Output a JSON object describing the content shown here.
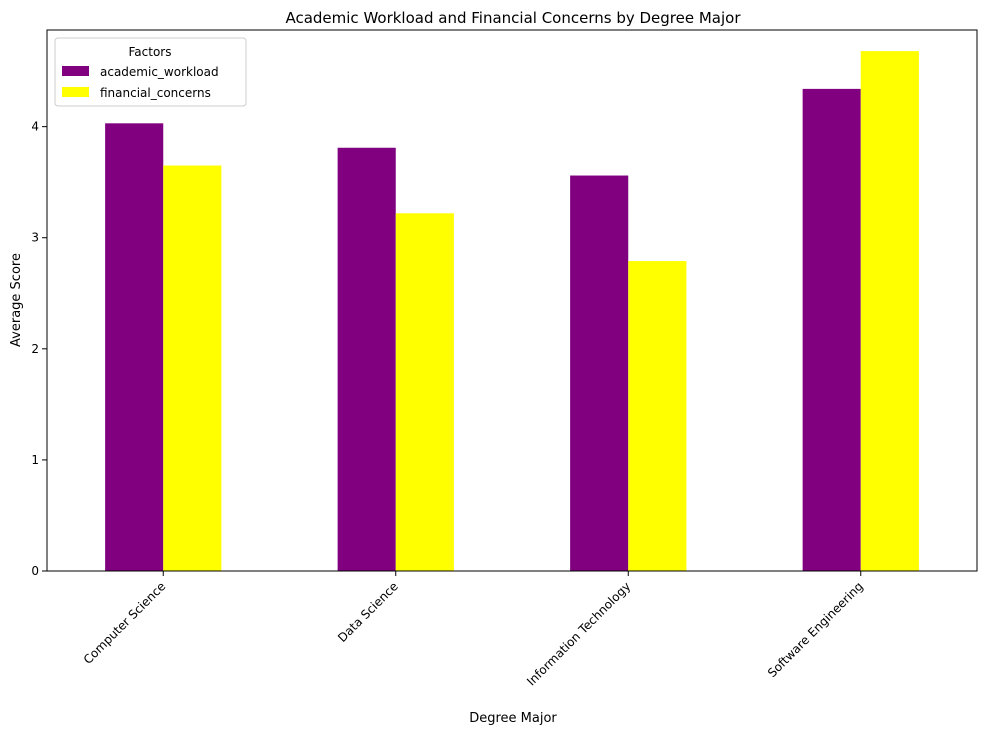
{
  "chart_data": {
    "type": "bar",
    "title": "Academic Workload and Financial Concerns by Degree Major",
    "xlabel": "Degree Major",
    "ylabel": "Average Score",
    "categories": [
      "Computer Science",
      "Data Science",
      "Information Technology",
      "Software Engineering"
    ],
    "series": [
      {
        "name": "academic_workload",
        "color": "#800080",
        "values": [
          4.03,
          3.81,
          3.56,
          4.34
        ]
      },
      {
        "name": "financial_concerns",
        "color": "#ffff00",
        "values": [
          3.65,
          3.22,
          2.79,
          4.68
        ]
      }
    ],
    "ylim": [
      0,
      4.87
    ],
    "yticks": [
      0,
      1,
      2,
      3,
      4
    ],
    "legend": {
      "title": "Factors",
      "position": "top-left"
    },
    "grid": false
  }
}
